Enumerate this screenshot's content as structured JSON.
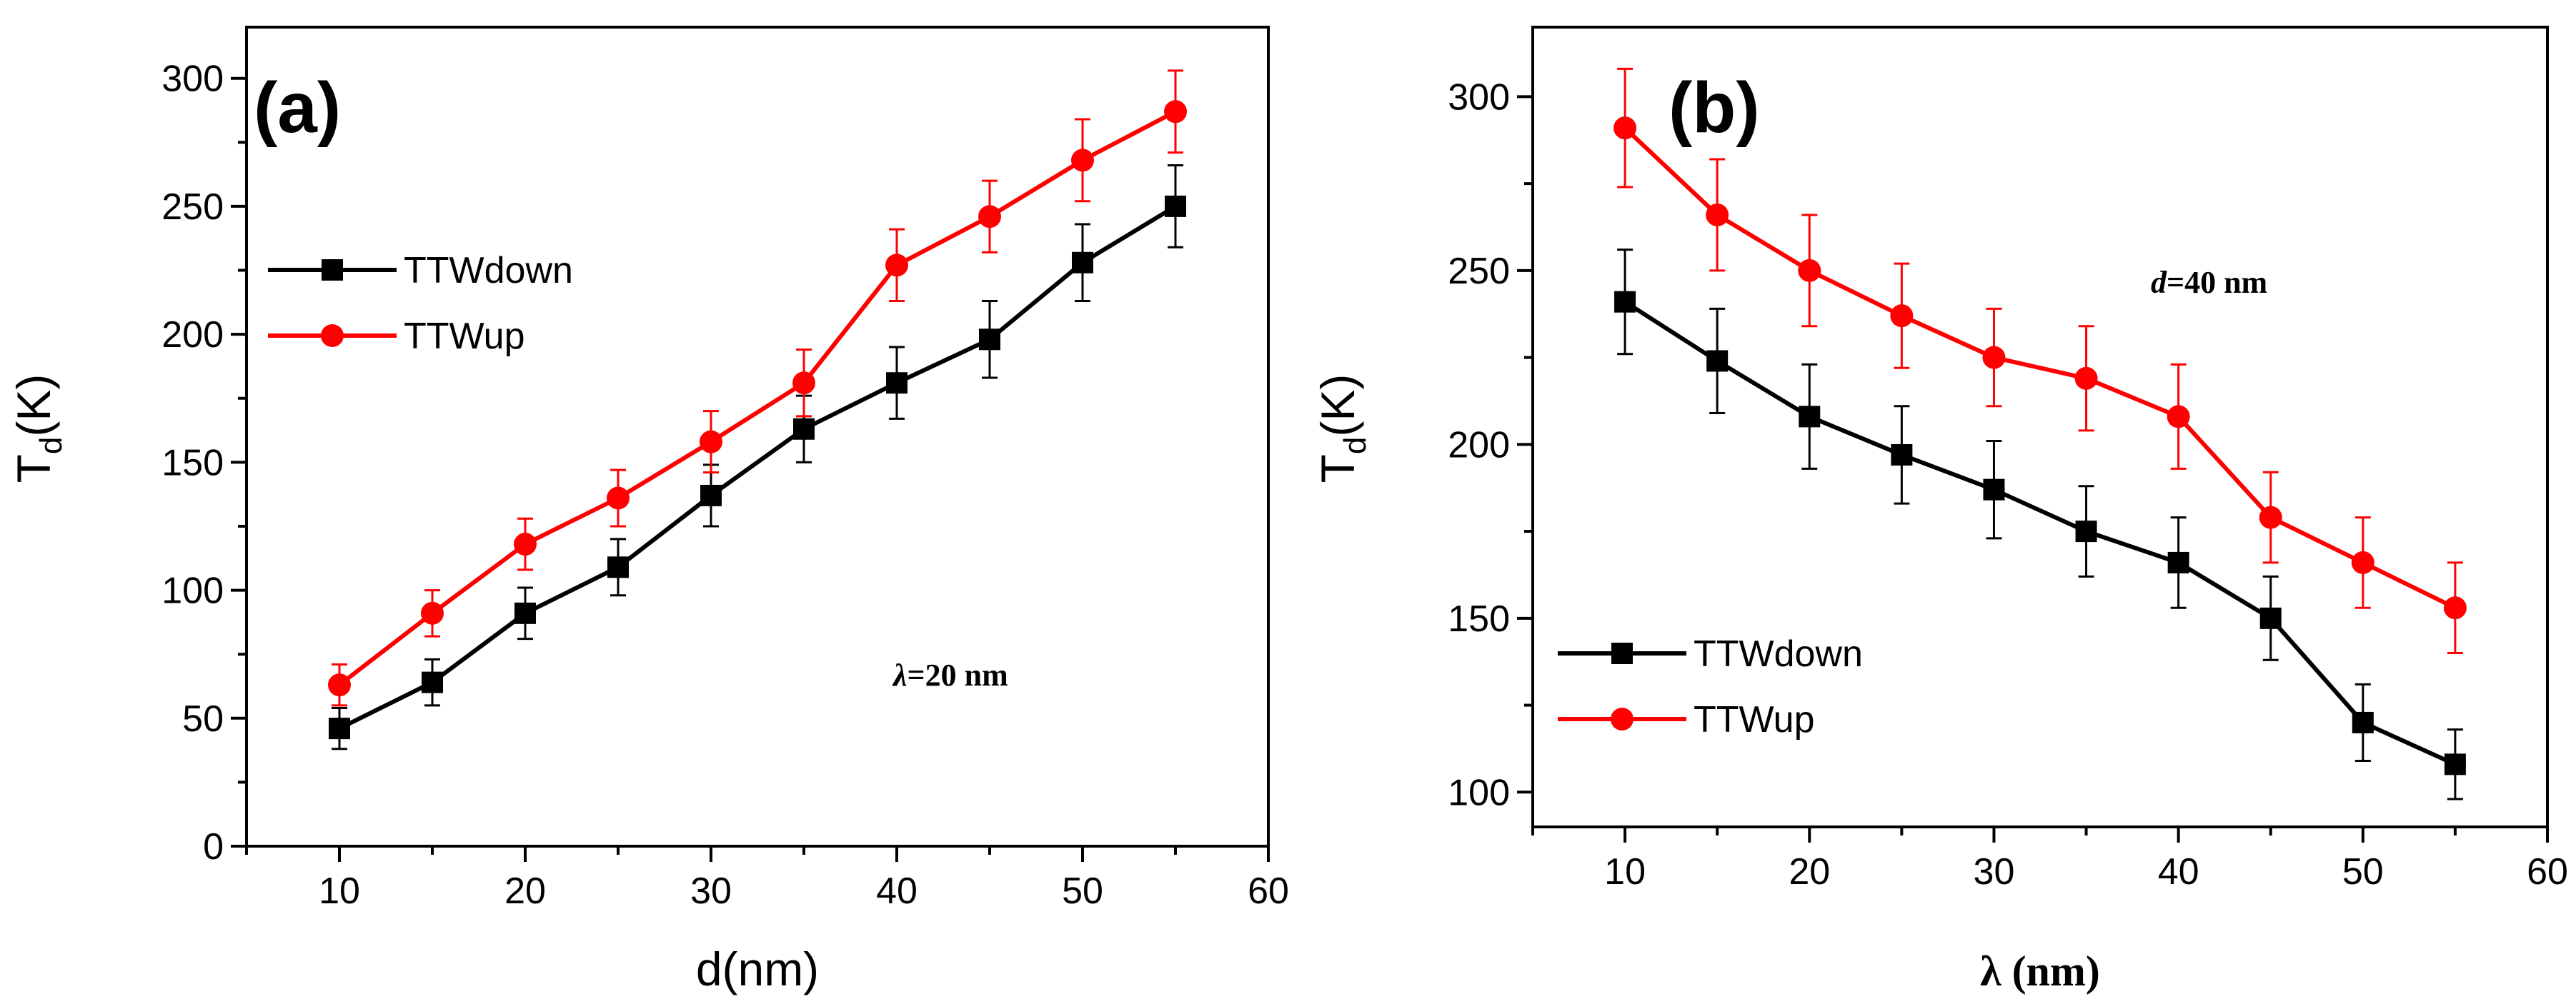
{
  "chart_data": [
    {
      "type": "line",
      "panel_label": "(a)",
      "xlabel": "d(nm)",
      "ylabel_main": "T",
      "ylabel_sub": "d",
      "ylabel_unit": "(K)",
      "xlim": [
        5,
        60
      ],
      "ylim": [
        0,
        320
      ],
      "xticks": [
        10,
        20,
        30,
        40,
        50,
        60
      ],
      "yticks": [
        0,
        50,
        100,
        150,
        200,
        250,
        300
      ],
      "x": [
        10,
        15,
        20,
        25,
        30,
        35,
        40,
        45,
        50,
        55
      ],
      "annotation": {
        "symbol": "λ",
        "text": "=20 nm"
      },
      "legend_position": "upper-left",
      "series": [
        {
          "name": "TTWdown",
          "color": "#000000",
          "marker": "square",
          "values": [
            46,
            64,
            91,
            109,
            137,
            163,
            181,
            198,
            228,
            250
          ],
          "errors": [
            8,
            9,
            10,
            11,
            12,
            13,
            14,
            15,
            15,
            16
          ]
        },
        {
          "name": "TTWup",
          "color": "#ff0000",
          "marker": "circle",
          "values": [
            63,
            91,
            118,
            136,
            158,
            181,
            227,
            246,
            268,
            287
          ],
          "errors": [
            8,
            9,
            10,
            11,
            12,
            13,
            14,
            14,
            16,
            16
          ]
        }
      ]
    },
    {
      "type": "line",
      "panel_label": "(b)",
      "xlabel": "λ (nm)",
      "ylabel_main": "T",
      "ylabel_sub": "d",
      "ylabel_unit": "(K)",
      "xlim": [
        5,
        60
      ],
      "ylim": [
        90,
        320
      ],
      "xticks": [
        10,
        20,
        30,
        40,
        50,
        60
      ],
      "yticks": [
        100,
        150,
        200,
        250,
        300
      ],
      "x": [
        10,
        15,
        20,
        25,
        30,
        35,
        40,
        45,
        50,
        55
      ],
      "annotation": {
        "symbol": "d",
        "text": "=40 nm"
      },
      "legend_position": "lower-left",
      "series": [
        {
          "name": "TTWdown",
          "color": "#000000",
          "marker": "square",
          "values": [
            241,
            224,
            208,
            197,
            187,
            175,
            166,
            150,
            120,
            108
          ],
          "errors": [
            15,
            15,
            15,
            14,
            14,
            13,
            13,
            12,
            11,
            10
          ]
        },
        {
          "name": "TTWup",
          "color": "#ff0000",
          "marker": "circle",
          "values": [
            291,
            266,
            250,
            237,
            225,
            219,
            208,
            179,
            166,
            153
          ],
          "errors": [
            17,
            16,
            16,
            15,
            14,
            15,
            15,
            13,
            13,
            13
          ]
        }
      ]
    }
  ]
}
